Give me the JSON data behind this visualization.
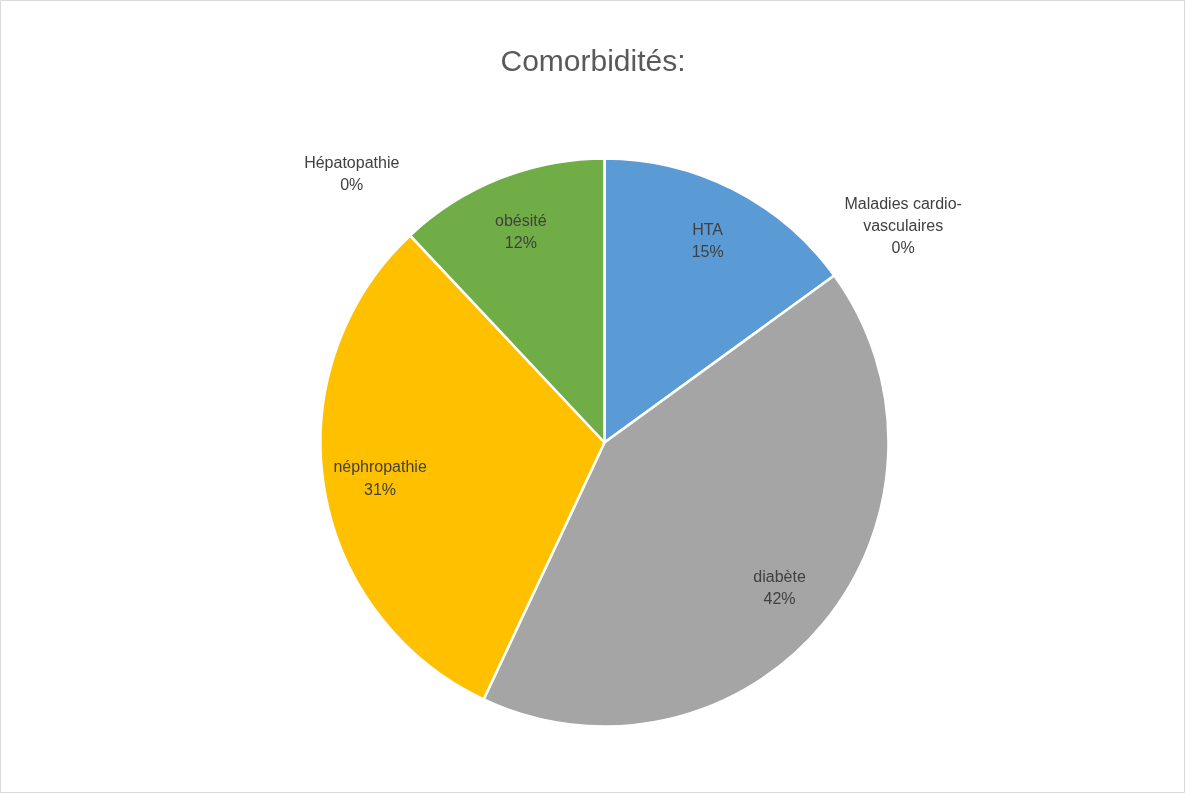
{
  "chart_data": {
    "type": "pie",
    "title": "Comorbidités:",
    "categories": [
      "HTA",
      "Maladies cardio-vasculaires",
      "diabète",
      "néphropathie",
      "Hépatopathie",
      "obésité"
    ],
    "values": [
      15,
      0,
      42,
      31,
      0,
      12
    ],
    "value_labels": [
      "15%",
      "0%",
      "42%",
      "31%",
      "0%",
      "12%"
    ],
    "colors": [
      "#5b9bd5",
      "#ed7d31",
      "#a5a5a5",
      "#ffc000",
      "#4472c4",
      "#70ad47"
    ]
  }
}
